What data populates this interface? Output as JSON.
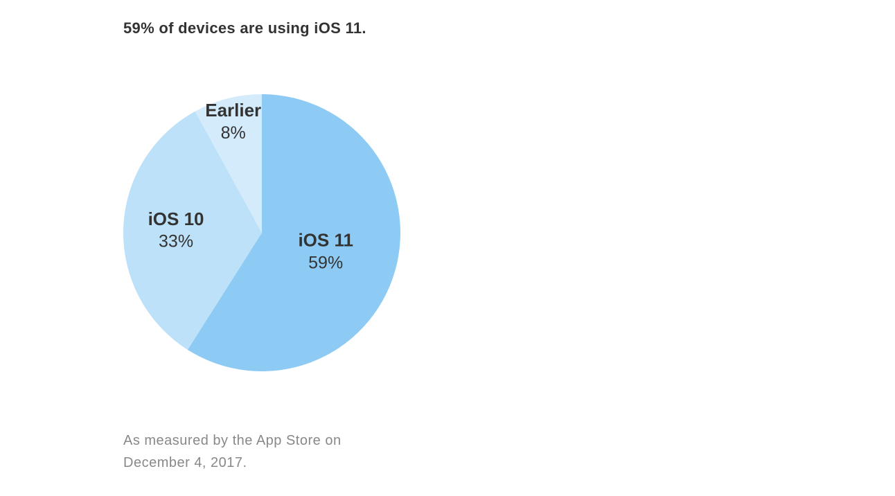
{
  "chart_data": {
    "type": "pie",
    "title": "59% of devices are using iOS 11.",
    "categories": [
      "iOS 11",
      "iOS 10",
      "Earlier"
    ],
    "values": [
      59,
      33,
      8
    ],
    "value_labels": [
      "59%",
      "33%",
      "8%"
    ],
    "colors": [
      "#8ecbf4",
      "#bde1f8",
      "#d3ebfb"
    ],
    "note": "As measured by the App Store on December 4, 2017."
  }
}
